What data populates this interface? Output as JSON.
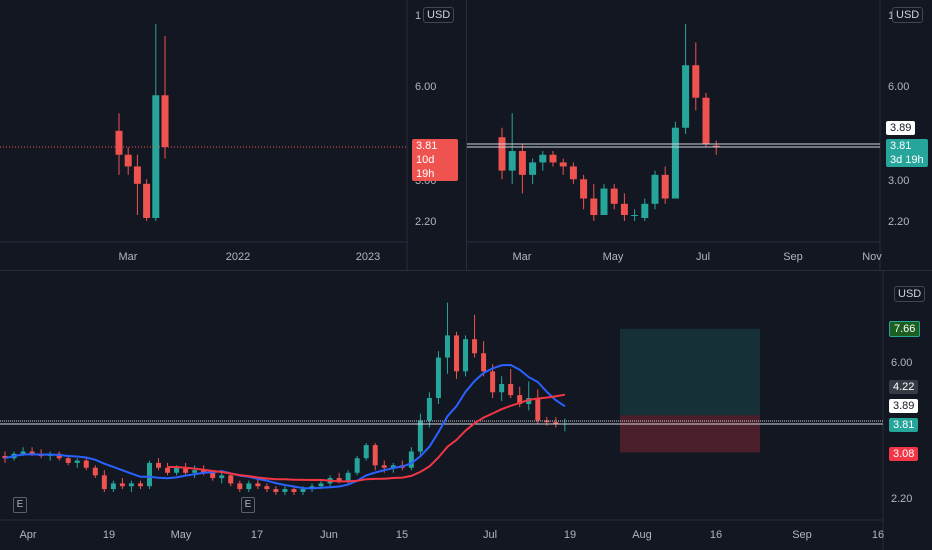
{
  "currency": "USD",
  "colors": {
    "up": "#26a69a",
    "down": "#ef5350",
    "ma_fast": "#2962ff",
    "ma_slow": "#f23645"
  },
  "chart_data": [
    {
      "type": "candlestick",
      "panel": "top-left",
      "x_ticks": [
        "Mar",
        "2022",
        "2023"
      ],
      "y_ticks": [
        "1",
        "6.00",
        "3.00",
        "2.20"
      ],
      "price_label": "3.81",
      "countdown": "10d 19h",
      "candles": [
        {
          "o": 4.3,
          "h": 4.9,
          "l": 3.1,
          "c": 3.6
        },
        {
          "o": 3.6,
          "h": 3.8,
          "l": 3.1,
          "c": 3.3
        },
        {
          "o": 3.3,
          "h": 3.6,
          "l": 2.3,
          "c": 2.9
        },
        {
          "o": 2.9,
          "h": 3.0,
          "l": 2.2,
          "c": 2.25
        },
        {
          "o": 2.25,
          "h": 9.5,
          "l": 2.2,
          "c": 5.6
        },
        {
          "o": 5.6,
          "h": 8.7,
          "l": 3.5,
          "c": 3.81
        }
      ]
    },
    {
      "type": "candlestick",
      "panel": "top-right",
      "x_ticks": [
        "Mar",
        "May",
        "Jul",
        "Sep",
        "Nov"
      ],
      "y_ticks": [
        "1",
        "6.00",
        "3.89",
        "3.00",
        "2.20"
      ],
      "price_label": "3.81",
      "price_label_2": "3.89",
      "countdown": "3d 19h",
      "candles": [
        {
          "o": 4.1,
          "h": 4.4,
          "l": 3.0,
          "c": 3.2
        },
        {
          "o": 3.2,
          "h": 4.9,
          "l": 2.9,
          "c": 3.7
        },
        {
          "o": 3.7,
          "h": 3.9,
          "l": 2.7,
          "c": 3.1
        },
        {
          "o": 3.1,
          "h": 3.5,
          "l": 2.9,
          "c": 3.4
        },
        {
          "o": 3.4,
          "h": 3.7,
          "l": 3.2,
          "c": 3.6
        },
        {
          "o": 3.6,
          "h": 3.7,
          "l": 3.3,
          "c": 3.4
        },
        {
          "o": 3.4,
          "h": 3.5,
          "l": 3.1,
          "c": 3.3
        },
        {
          "o": 3.3,
          "h": 3.4,
          "l": 2.9,
          "c": 3.0
        },
        {
          "o": 3.0,
          "h": 3.1,
          "l": 2.4,
          "c": 2.6
        },
        {
          "o": 2.6,
          "h": 2.9,
          "l": 2.2,
          "c": 2.3
        },
        {
          "o": 2.3,
          "h": 2.9,
          "l": 2.3,
          "c": 2.8
        },
        {
          "o": 2.8,
          "h": 2.9,
          "l": 2.4,
          "c": 2.5
        },
        {
          "o": 2.5,
          "h": 2.7,
          "l": 2.2,
          "c": 2.3
        },
        {
          "o": 2.3,
          "h": 2.4,
          "l": 2.2,
          "c": 2.3
        },
        {
          "o": 2.25,
          "h": 2.6,
          "l": 2.2,
          "c": 2.5
        },
        {
          "o": 2.5,
          "h": 3.2,
          "l": 2.4,
          "c": 3.1
        },
        {
          "o": 3.1,
          "h": 3.3,
          "l": 2.5,
          "c": 2.6
        },
        {
          "o": 2.6,
          "h": 4.6,
          "l": 2.6,
          "c": 4.4
        },
        {
          "o": 4.4,
          "h": 9.5,
          "l": 4.2,
          "c": 7.0
        },
        {
          "o": 7.0,
          "h": 8.3,
          "l": 5.0,
          "c": 5.5
        },
        {
          "o": 5.5,
          "h": 5.7,
          "l": 3.8,
          "c": 3.9
        },
        {
          "o": 3.85,
          "h": 4.0,
          "l": 3.6,
          "c": 3.81
        }
      ]
    },
    {
      "type": "candlestick",
      "panel": "bottom",
      "x_ticks": [
        "Apr",
        "19",
        "May",
        "17",
        "Jun",
        "15",
        "Jul",
        "19",
        "Aug",
        "16",
        "Sep",
        "16"
      ],
      "y_ticks": [
        "6.00",
        "4.22",
        "3.89",
        "3.81",
        "2.20"
      ],
      "price_label": "3.81",
      "price_label_2": "3.89",
      "ma_label": "4.22",
      "take_profit": "7.66",
      "stop_loss": "3.08",
      "events": [
        "E",
        "E"
      ],
      "position": {
        "entry": 4.05,
        "target": 7.66,
        "stop": 3.08
      },
      "candles": [
        {
          "o": 3.0,
          "h": 3.1,
          "l": 2.85,
          "c": 2.95
        },
        {
          "o": 2.95,
          "h": 3.1,
          "l": 2.9,
          "c": 3.05
        },
        {
          "o": 3.05,
          "h": 3.2,
          "l": 3.0,
          "c": 3.1
        },
        {
          "o": 3.1,
          "h": 3.2,
          "l": 3.0,
          "c": 3.05
        },
        {
          "o": 3.05,
          "h": 3.15,
          "l": 2.95,
          "c": 3.0
        },
        {
          "o": 3.0,
          "h": 3.1,
          "l": 2.9,
          "c": 3.05
        },
        {
          "o": 3.05,
          "h": 3.1,
          "l": 2.9,
          "c": 2.95
        },
        {
          "o": 2.95,
          "h": 3.0,
          "l": 2.8,
          "c": 2.85
        },
        {
          "o": 2.85,
          "h": 2.95,
          "l": 2.75,
          "c": 2.9
        },
        {
          "o": 2.9,
          "h": 2.95,
          "l": 2.7,
          "c": 2.75
        },
        {
          "o": 2.75,
          "h": 2.8,
          "l": 2.55,
          "c": 2.6
        },
        {
          "o": 2.6,
          "h": 2.7,
          "l": 2.3,
          "c": 2.35
        },
        {
          "o": 2.35,
          "h": 2.5,
          "l": 2.3,
          "c": 2.45
        },
        {
          "o": 2.45,
          "h": 2.55,
          "l": 2.35,
          "c": 2.4
        },
        {
          "o": 2.4,
          "h": 2.5,
          "l": 2.3,
          "c": 2.45
        },
        {
          "o": 2.45,
          "h": 2.5,
          "l": 2.35,
          "c": 2.4
        },
        {
          "o": 2.4,
          "h": 2.9,
          "l": 2.35,
          "c": 2.85
        },
        {
          "o": 2.85,
          "h": 2.95,
          "l": 2.7,
          "c": 2.75
        },
        {
          "o": 2.75,
          "h": 2.85,
          "l": 2.6,
          "c": 2.65
        },
        {
          "o": 2.65,
          "h": 2.8,
          "l": 2.6,
          "c": 2.75
        },
        {
          "o": 2.75,
          "h": 2.85,
          "l": 2.6,
          "c": 2.65
        },
        {
          "o": 2.65,
          "h": 2.8,
          "l": 2.55,
          "c": 2.7
        },
        {
          "o": 2.7,
          "h": 2.8,
          "l": 2.6,
          "c": 2.65
        },
        {
          "o": 2.65,
          "h": 2.7,
          "l": 2.5,
          "c": 2.55
        },
        {
          "o": 2.55,
          "h": 2.65,
          "l": 2.45,
          "c": 2.6
        },
        {
          "o": 2.6,
          "h": 2.65,
          "l": 2.4,
          "c": 2.45
        },
        {
          "o": 2.45,
          "h": 2.5,
          "l": 2.3,
          "c": 2.35
        },
        {
          "o": 2.35,
          "h": 2.5,
          "l": 2.3,
          "c": 2.45
        },
        {
          "o": 2.45,
          "h": 2.55,
          "l": 2.35,
          "c": 2.4
        },
        {
          "o": 2.4,
          "h": 2.45,
          "l": 2.3,
          "c": 2.35
        },
        {
          "o": 2.35,
          "h": 2.4,
          "l": 2.25,
          "c": 2.3
        },
        {
          "o": 2.3,
          "h": 2.4,
          "l": 2.25,
          "c": 2.35
        },
        {
          "o": 2.35,
          "h": 2.4,
          "l": 2.25,
          "c": 2.3
        },
        {
          "o": 2.3,
          "h": 2.4,
          "l": 2.25,
          "c": 2.35
        },
        {
          "o": 2.35,
          "h": 2.45,
          "l": 2.3,
          "c": 2.4
        },
        {
          "o": 2.4,
          "h": 2.5,
          "l": 2.35,
          "c": 2.45
        },
        {
          "o": 2.45,
          "h": 2.6,
          "l": 2.4,
          "c": 2.55
        },
        {
          "o": 2.55,
          "h": 2.65,
          "l": 2.45,
          "c": 2.5
        },
        {
          "o": 2.5,
          "h": 2.7,
          "l": 2.45,
          "c": 2.65
        },
        {
          "o": 2.65,
          "h": 3.0,
          "l": 2.6,
          "c": 2.95
        },
        {
          "o": 2.95,
          "h": 3.3,
          "l": 2.9,
          "c": 3.25
        },
        {
          "o": 3.25,
          "h": 3.3,
          "l": 2.7,
          "c": 2.8
        },
        {
          "o": 2.8,
          "h": 2.9,
          "l": 2.65,
          "c": 2.75
        },
        {
          "o": 2.75,
          "h": 2.85,
          "l": 2.65,
          "c": 2.8
        },
        {
          "o": 2.8,
          "h": 2.9,
          "l": 2.7,
          "c": 2.75
        },
        {
          "o": 2.75,
          "h": 3.2,
          "l": 2.7,
          "c": 3.1
        },
        {
          "o": 3.1,
          "h": 4.1,
          "l": 3.0,
          "c": 3.9
        },
        {
          "o": 3.9,
          "h": 4.8,
          "l": 3.7,
          "c": 4.6
        },
        {
          "o": 4.6,
          "h": 6.5,
          "l": 4.4,
          "c": 6.2
        },
        {
          "o": 6.2,
          "h": 9.3,
          "l": 5.5,
          "c": 7.3
        },
        {
          "o": 7.3,
          "h": 7.5,
          "l": 5.3,
          "c": 5.6
        },
        {
          "o": 5.6,
          "h": 7.3,
          "l": 5.4,
          "c": 7.1
        },
        {
          "o": 7.1,
          "h": 8.5,
          "l": 6.2,
          "c": 6.4
        },
        {
          "o": 6.4,
          "h": 7.0,
          "l": 5.4,
          "c": 5.6
        },
        {
          "o": 5.6,
          "h": 5.9,
          "l": 4.6,
          "c": 4.8
        },
        {
          "o": 4.8,
          "h": 5.4,
          "l": 4.5,
          "c": 5.1
        },
        {
          "o": 5.1,
          "h": 5.7,
          "l": 4.6,
          "c": 4.7
        },
        {
          "o": 4.7,
          "h": 5.0,
          "l": 4.3,
          "c": 4.4
        },
        {
          "o": 4.4,
          "h": 5.2,
          "l": 4.2,
          "c": 4.6
        },
        {
          "o": 4.6,
          "h": 4.9,
          "l": 3.8,
          "c": 3.9
        },
        {
          "o": 3.9,
          "h": 4.0,
          "l": 3.75,
          "c": 3.85
        },
        {
          "o": 3.85,
          "h": 4.0,
          "l": 3.7,
          "c": 3.8
        },
        {
          "o": 3.8,
          "h": 3.95,
          "l": 3.6,
          "c": 3.81
        }
      ]
    }
  ]
}
